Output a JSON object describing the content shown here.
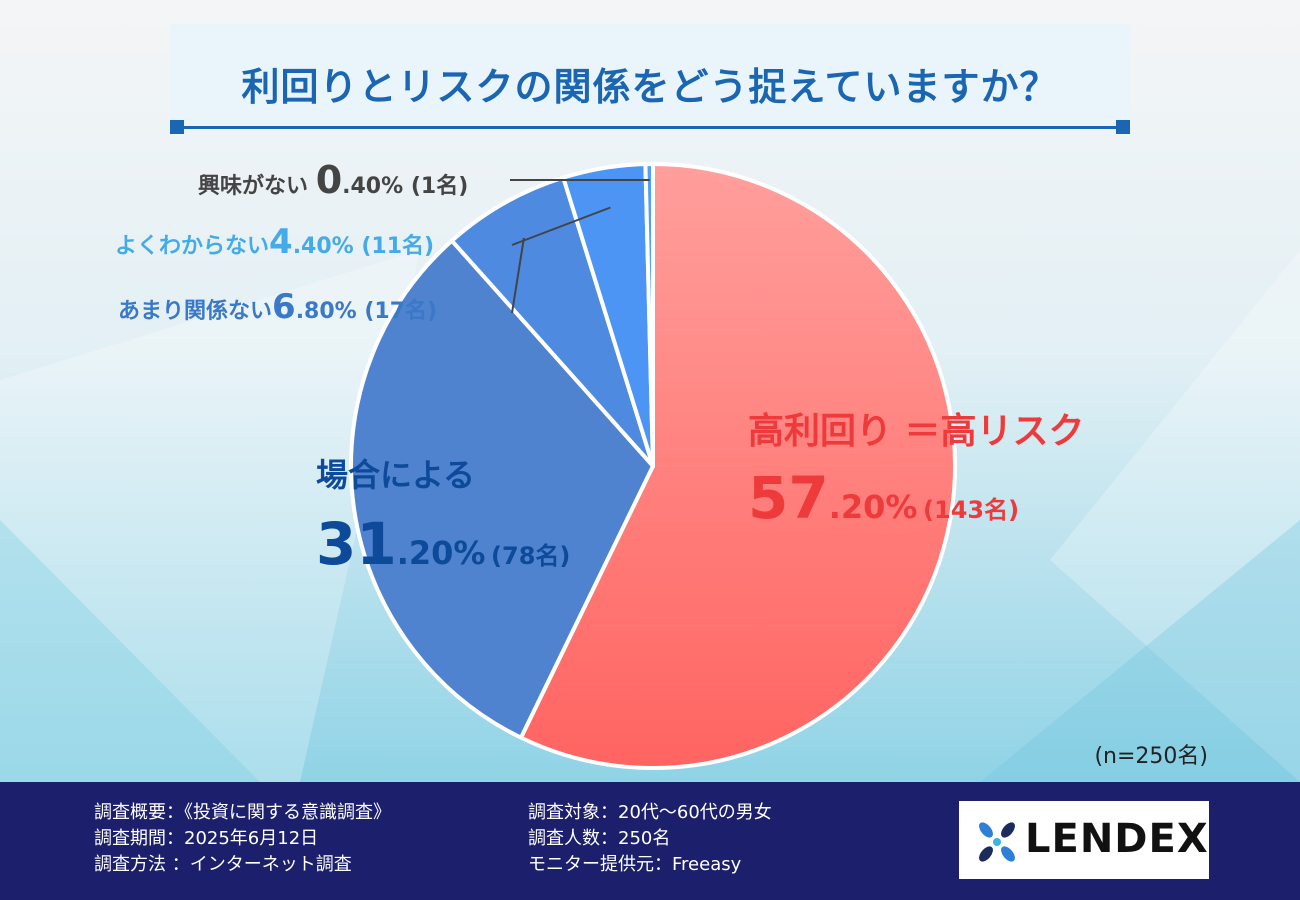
{
  "header": {
    "title": "利回りとリスクの関係をどう捉えていますか？"
  },
  "chart_data": {
    "type": "pie",
    "title": "利回りとリスクの関係をどう捉えていますか？",
    "slices": [
      {
        "label": "高利回り ＝高リスク",
        "percent": 57.2,
        "count": 143,
        "color": "#ff7270",
        "head": "高利回り ＝高リスク",
        "pct_int": "57",
        "pct_dec": ".20%",
        "count_text": "(143名)"
      },
      {
        "label": "場合による",
        "percent": 31.2,
        "count": 78,
        "color": "#4f82cf",
        "head": "場合による",
        "pct_int": "31",
        "pct_dec": ".20%",
        "count_text": "(78名)"
      },
      {
        "label": "あまり関係ない",
        "percent": 6.8,
        "count": 17,
        "color": "#4d8ae0",
        "head": "あまり関係ない",
        "pct_int": "6",
        "pct_dec": ".80%",
        "count_text": "(17名)"
      },
      {
        "label": "よくわからない",
        "percent": 4.4,
        "count": 11,
        "color": "#4c95f4",
        "head": "よくわからない",
        "pct_int": "4",
        "pct_dec": ".40%",
        "count_text": "(11名)"
      },
      {
        "label": "興味がない",
        "percent": 0.4,
        "count": 1,
        "color": "#4da2f8",
        "head": "興味がない",
        "pct_int": "0",
        "pct_dec": ".40%",
        "count_text": "(1名)"
      }
    ],
    "sample_size": "(n=250名)",
    "legend": "none"
  },
  "footer": {
    "left": [
      "調査概要：《投資に関する意識調査》",
      "調査期間：2025年6月12日",
      "調査方法 ：インターネット調査"
    ],
    "middle": [
      "調査対象：20代〜60代の男女",
      "調査人数：250名",
      "モニター提供元：Freeasy"
    ],
    "logo_text": "LENDEX"
  }
}
